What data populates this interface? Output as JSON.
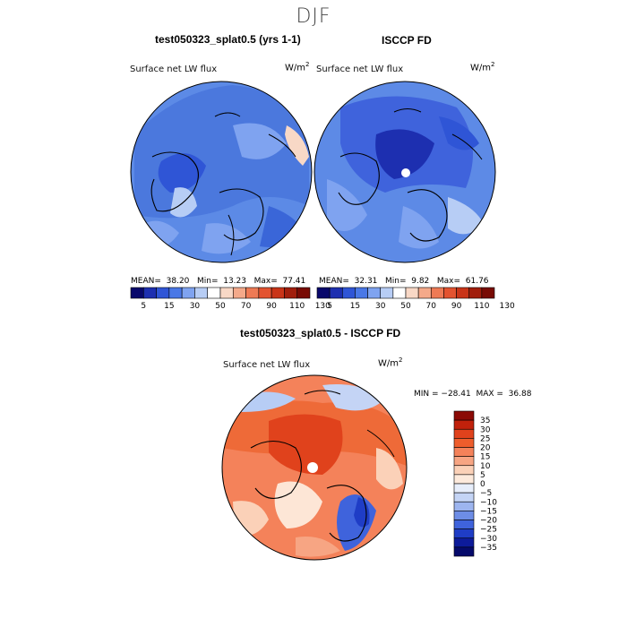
{
  "figure": {
    "season": "DJF",
    "subtitle_bottom": "test050323_splat0.5 - ISCCP FD"
  },
  "panels": [
    {
      "id": "model",
      "title": "test050323_splat0.5 (yrs 1-1)",
      "field": "Surface net LW flux",
      "units": "W/m",
      "units_sup": "2",
      "stats": {
        "mean_label": "MEAN=",
        "mean": "38.20",
        "min_label": "Min=",
        "min": "13.23",
        "max_label": "Max=",
        "max": "77.41"
      }
    },
    {
      "id": "obs",
      "title": "ISCCP FD",
      "field": "Surface net LW flux",
      "units": "W/m",
      "units_sup": "2",
      "stats": {
        "mean_label": "MEAN=",
        "mean": "32.31",
        "min_label": "Min=",
        "min": "9.82",
        "max_label": "Max=",
        "max": "61.76"
      }
    }
  ],
  "diff_panel": {
    "field": "Surface net LW flux",
    "units": "W/m",
    "units_sup": "2",
    "stats_text": "MIN = −28.41  MAX =  36.88"
  },
  "chart_data": [
    {
      "type": "heatmap",
      "projection": "north-polar-stereographic",
      "title": "test050323_splat0.5 (yrs 1-1)",
      "variable": "Surface net LW flux",
      "units": "W/m2",
      "mean": 38.2,
      "min": 13.23,
      "max": 77.41,
      "colorbar": {
        "levels": [
          5,
          15,
          30,
          50,
          70,
          90,
          110,
          130
        ],
        "tick_labels": [
          "5",
          "15",
          "30",
          "50",
          "70",
          "90",
          "110",
          "130"
        ],
        "colors": [
          "#08086b",
          "#1d2fb0",
          "#2f55d6",
          "#4a78e6",
          "#7fa3f0",
          "#b7cdf5",
          "#ffffff",
          "#f8d8c6",
          "#f4a98a",
          "#ee7a55",
          "#e35330",
          "#c93418",
          "#a11e0c",
          "#780b04"
        ]
      }
    },
    {
      "type": "heatmap",
      "projection": "north-polar-stereographic",
      "title": "ISCCP FD",
      "variable": "Surface net LW flux",
      "units": "W/m2",
      "mean": 32.31,
      "min": 9.82,
      "max": 61.76,
      "colorbar": {
        "levels": [
          5,
          15,
          30,
          50,
          70,
          90,
          110,
          130
        ],
        "tick_labels": [
          "5",
          "15",
          "30",
          "50",
          "70",
          "90",
          "110",
          "130"
        ],
        "colors": [
          "#08086b",
          "#1d2fb0",
          "#2f55d6",
          "#4a78e6",
          "#7fa3f0",
          "#b7cdf5",
          "#ffffff",
          "#f8d8c6",
          "#f4a98a",
          "#ee7a55",
          "#e35330",
          "#c93418",
          "#a11e0c",
          "#780b04"
        ]
      }
    },
    {
      "type": "heatmap",
      "projection": "north-polar-stereographic",
      "title": "test050323_splat0.5 - ISCCP FD",
      "variable": "Surface net LW flux",
      "units": "W/m2",
      "min": -28.41,
      "max": 36.88,
      "colorbar": {
        "orientation": "vertical",
        "levels": [
          35,
          30,
          25,
          20,
          15,
          10,
          5,
          0,
          -5,
          -10,
          -15,
          -20,
          -25,
          -30,
          -35
        ],
        "tick_labels": [
          "35",
          "30",
          "25",
          "20",
          "15",
          "10",
          "5",
          "0",
          "−5",
          "−10",
          "−15",
          "−20",
          "−25",
          "−30",
          "−35"
        ],
        "colors": [
          "#8b0a05",
          "#c1210b",
          "#e0421c",
          "#ee5d2c",
          "#f4825a",
          "#f7a583",
          "#fbd1b8",
          "#fdeadc",
          "#e7eefb",
          "#c4d4f5",
          "#9db5ef",
          "#6d8de6",
          "#3f63dc",
          "#1f3dc6",
          "#0d1b9a",
          "#050a6b"
        ]
      }
    }
  ],
  "colors": {
    "ocean_blue": "#4d7fe0",
    "land_blue": "#3a66d8",
    "deep_blue": "#1e40c8",
    "pole_white": "#ffffff",
    "diff_orange": "#ee6a38",
    "diff_cream": "#fde6d6"
  }
}
